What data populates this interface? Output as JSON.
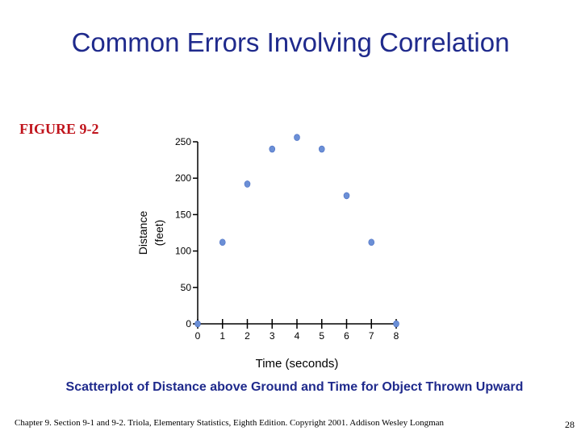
{
  "slide": {
    "title": "Common Errors Involving Correlation",
    "figure_label": "FIGURE 9-2",
    "caption": "Scatterplot of Distance above Ground and Time for Object Thrown Upward",
    "footer": "Chapter 9.  Section 9-1 and 9-2.  Triola, Elementary Statistics, Eighth Edition. Copyright  2001.  Addison Wesley Longman",
    "page_number": "28"
  },
  "chart_data": {
    "type": "scatter",
    "title": "",
    "xlabel": "Time (seconds)",
    "ylabel_lines": [
      "Distance",
      "(feet)"
    ],
    "xlim": [
      0,
      8
    ],
    "ylim": [
      0,
      250
    ],
    "x_ticks": [
      0,
      1,
      2,
      3,
      4,
      5,
      6,
      7,
      8
    ],
    "y_ticks": [
      0,
      50,
      100,
      150,
      200,
      250
    ],
    "x_tick_labels": [
      "0",
      "1",
      "2",
      "3",
      "4",
      "5",
      "6",
      "7",
      "8"
    ],
    "y_tick_labels": [
      "0",
      "50",
      "100",
      "150",
      "200",
      "250"
    ],
    "grid": false,
    "colors": {
      "points": "#6b8fd6",
      "axis": "#000000"
    },
    "series": [
      {
        "x": [
          0,
          1,
          2,
          3,
          4,
          5,
          6,
          7,
          8
        ],
        "y": [
          0,
          112,
          192,
          240,
          256,
          240,
          176,
          112,
          0
        ]
      }
    ]
  }
}
